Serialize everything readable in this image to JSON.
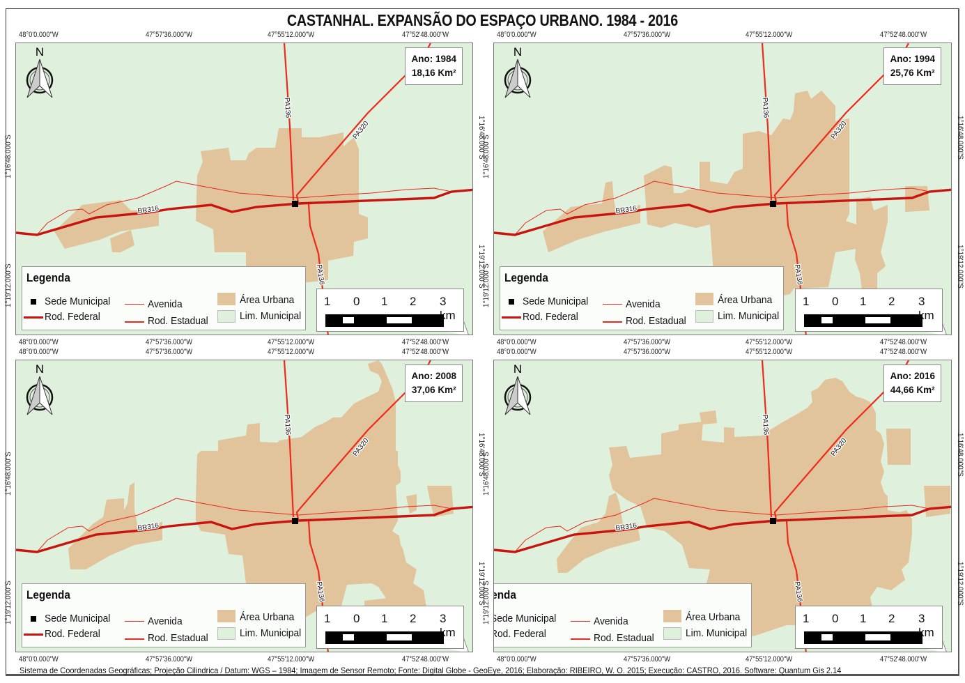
{
  "title": "CASTANHAL. EXPANSÃO DO ESPAÇO URBANO. 1984 - 2016",
  "colors": {
    "background_map": "#dff0dc",
    "urban_area": "#e1c39c",
    "rod_federal": "#c8140e",
    "rod_estadual": "#ee2a1a",
    "avenida": "#e8291b",
    "sede": "#000000"
  },
  "grid": {
    "longitudes": [
      "48°0'0.000\"W",
      "47°57'36.000\"W",
      "47°55'12.000\"W",
      "47°52'48.000\"W"
    ],
    "latitudes": [
      "1°16'48.000\"S",
      "1°19'12.000\"S"
    ]
  },
  "panels": [
    {
      "id": "p1984",
      "year_label": "Ano: 1984",
      "area_label": "18,16 Km²"
    },
    {
      "id": "p1994",
      "year_label": "Ano: 1994",
      "area_label": "25,76 Km²"
    },
    {
      "id": "p2008",
      "year_label": "Ano: 2008",
      "area_label": "37,06 Km²"
    },
    {
      "id": "p2016",
      "year_label": "Ano: 2016",
      "area_label": "44,66 Km²"
    }
  ],
  "north_arrow": {
    "label": "N"
  },
  "roads": {
    "br": "BR316",
    "pa136": "PA136",
    "pa320": "PA320"
  },
  "legend": {
    "title": "Legenda",
    "items": {
      "sede": "Sede Municipal",
      "avenida": "Avenida",
      "area_urbana": "Área Urbana",
      "rod_federal": "Rod. Federal",
      "rod_estadual": "Rod. Estadual",
      "lim_municipal": "Lim. Municipal"
    }
  },
  "scale_bar": {
    "labels": [
      "1",
      "0",
      "1",
      "2",
      "3 km"
    ]
  },
  "footer": "Sistema de Coordenadas Geográficas; Projeção Cilindrica / Datum: WGS – 1984; Imagem de Sensor Remoto; Fonte: Digital Globe - GeoEye, 2016; Elaboração: RIBEIRO, W. O. 2015; Execução: CASTRO, 2016. Software: Quantum Gis 2.14",
  "chart_data": {
    "type": "table",
    "title": "CASTANHAL. EXPANSÃO DO ESPAÇO URBANO. 1984 - 2016",
    "categories": [
      "1984",
      "1994",
      "2008",
      "2016"
    ],
    "values": [
      18.16,
      25.76,
      37.06,
      44.66
    ],
    "unit": "Km²"
  }
}
